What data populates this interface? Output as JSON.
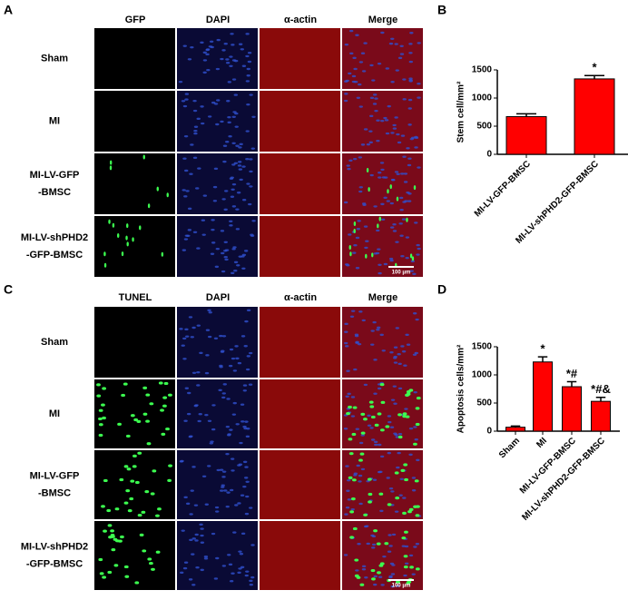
{
  "panels": [
    {
      "letter": "A",
      "columns": [
        "GFP",
        "DAPI",
        "α-actin",
        "Merge"
      ],
      "row_labels": [
        [
          "Sham"
        ],
        [
          "MI"
        ],
        [
          "MI-LV-GFP",
          "-BMSC"
        ],
        [
          "MI-LV-shPHD2",
          "-GFP-BMSC"
        ]
      ],
      "scale_bar": "100 μm"
    },
    {
      "letter": "C",
      "columns": [
        "TUNEL",
        "DAPI",
        "α-actin",
        "Merge"
      ],
      "row_labels": [
        [
          "Sham"
        ],
        [
          "MI"
        ],
        [
          "MI-LV-GFP",
          "-BMSC"
        ],
        [
          "MI-LV-shPHD2",
          "-GFP-BMSC"
        ]
      ],
      "scale_bar": "100 μm"
    }
  ],
  "chart_data": [
    {
      "type": "bar",
      "letter": "B",
      "y_label": "Stem cell/mm²",
      "categories": [
        "MI-LV-GFP-BMSC",
        "MI-LV-shPHD2-GFP-BMSC"
      ],
      "values": [
        670,
        1340
      ],
      "errors": [
        50,
        60
      ],
      "bar_labels": [
        null,
        "*"
      ],
      "color": "#ff0000",
      "ylim": [
        0,
        1500
      ],
      "yticks": [
        0,
        500,
        1000,
        1500
      ]
    },
    {
      "type": "bar",
      "letter": "D",
      "y_label": "Apoptosis cells/mm²",
      "categories": [
        "Sham",
        "MI",
        "MI-LV-GFP-BMSC",
        "MI-LV-shPHD2-GFP-BMSC"
      ],
      "values": [
        70,
        1230,
        790,
        530
      ],
      "errors": [
        20,
        90,
        90,
        70
      ],
      "bar_labels": [
        null,
        "*",
        "*#",
        "*#&"
      ],
      "color": "#ff0000",
      "ylim": [
        0,
        1500
      ],
      "yticks": [
        0,
        500,
        1000,
        1500
      ]
    }
  ]
}
